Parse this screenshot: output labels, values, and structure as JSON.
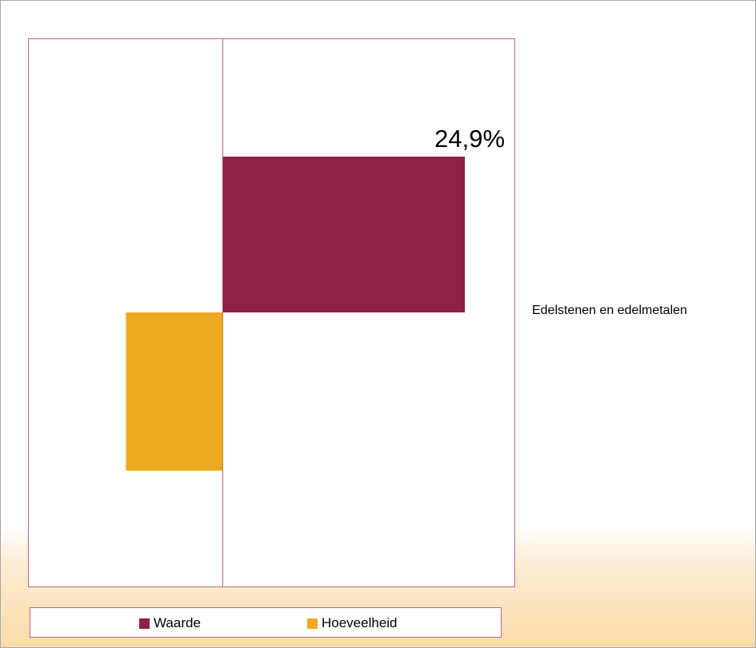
{
  "chart_data": {
    "type": "bar",
    "orientation": "horizontal",
    "categories": [
      "Edelstenen en edelmetalen"
    ],
    "series": [
      {
        "name": "Waarde",
        "values": [
          24.9
        ],
        "color": "#8e2146",
        "data_label": "24,9%"
      },
      {
        "name": "Hoeveelheid",
        "values": [
          -10.0
        ],
        "color": "#efa920"
      }
    ],
    "xlim": [
      -20,
      30
    ],
    "legend_position": "bottom",
    "grid": false
  }
}
